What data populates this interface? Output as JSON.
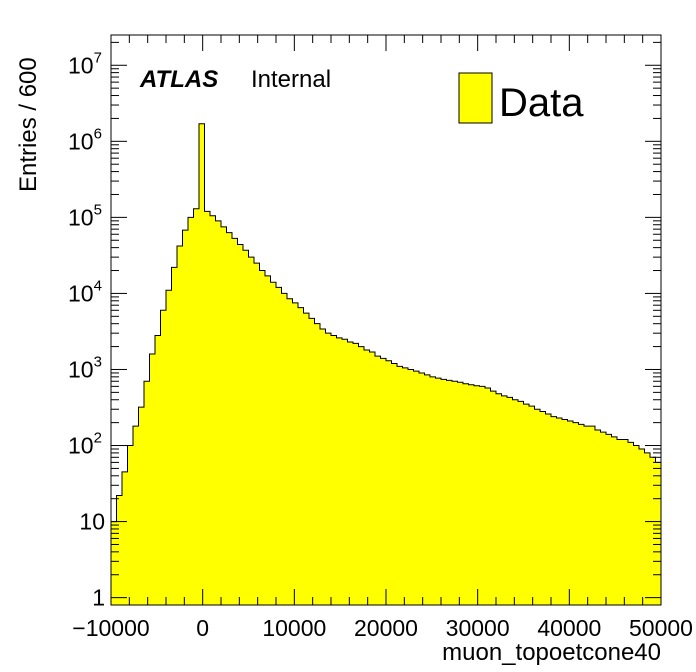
{
  "chart_data": {
    "type": "bar",
    "subtype": "histogram",
    "xlabel": "muon_topoetcone40",
    "ylabel": "Entries / 600",
    "xlim": [
      -10000,
      50000
    ],
    "ylim": [
      0.8,
      25000000
    ],
    "y_scale": "log",
    "bin_width": 600,
    "x_ticks": [
      "−10000",
      "0",
      "10000",
      "20000",
      "30000",
      "40000",
      "50000"
    ],
    "y_ticks": [
      {
        "base": "1",
        "exp": ""
      },
      {
        "base": "10",
        "exp": ""
      },
      {
        "base": "10",
        "exp": "2"
      },
      {
        "base": "10",
        "exp": "3"
      },
      {
        "base": "10",
        "exp": "4"
      },
      {
        "base": "10",
        "exp": "5"
      },
      {
        "base": "10",
        "exp": "6"
      },
      {
        "base": "10",
        "exp": "7"
      }
    ],
    "atlas_label": "ATLAS",
    "atlas_status": "Internal",
    "legend": {
      "entries": [
        "Data"
      ],
      "position": "top-right"
    },
    "fill_color": "#ffff00",
    "line_color": "#000000",
    "values": [
      10,
      22,
      45,
      100,
      180,
      320,
      700,
      1600,
      2800,
      6000,
      11000,
      22000,
      42000,
      68000,
      100000,
      130000,
      1700000,
      120000,
      105000,
      90000,
      75000,
      63000,
      53000,
      44000,
      37000,
      30000,
      25000,
      20000,
      17000,
      14000,
      12000,
      10000,
      8500,
      7500,
      6500,
      5500,
      4700,
      4000,
      3400,
      3000,
      2800,
      2600,
      2500,
      2300,
      2200,
      2000,
      1800,
      1700,
      1500,
      1400,
      1300,
      1200,
      1100,
      1050,
      1000,
      950,
      900,
      850,
      800,
      770,
      740,
      720,
      700,
      680,
      650,
      630,
      610,
      600,
      570,
      520,
      480,
      450,
      430,
      400,
      380,
      350,
      330,
      300,
      280,
      260,
      240,
      230,
      220,
      210,
      200,
      190,
      180,
      180,
      160,
      150,
      140,
      130,
      120,
      120,
      110,
      100,
      90,
      80,
      70,
      60
    ]
  }
}
